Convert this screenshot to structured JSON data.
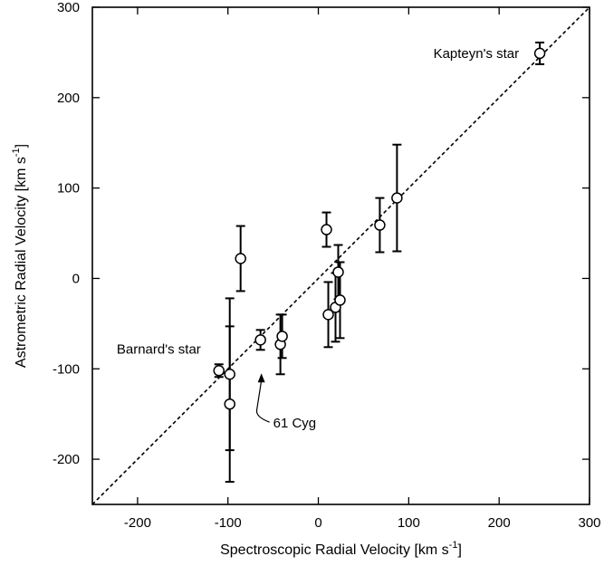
{
  "chart_data": {
    "type": "scatter",
    "title": "",
    "xlabel": "Spectroscopic Radial Velocity  [km s",
    "xlabel_exp": "-1",
    "xlabel_close": "]",
    "ylabel": "Astrometric Radial Velocity  [km s",
    "ylabel_exp": "-1",
    "ylabel_close": "]",
    "xlim": [
      -250,
      300
    ],
    "ylim": [
      -250,
      300
    ],
    "xticks": [
      -200,
      -100,
      0,
      100,
      200,
      300
    ],
    "yticks": [
      -200,
      -100,
      0,
      100,
      200,
      300
    ],
    "grid": false,
    "legend": "none",
    "reference_line": {
      "style": "dashed",
      "from": [
        -250,
        -250
      ],
      "to": [
        300,
        300
      ]
    },
    "points": [
      {
        "x": -110,
        "y": -102,
        "err_low": 7,
        "err_high": 7
      },
      {
        "x": -98,
        "y": -106,
        "err_low": 84,
        "err_high": 84
      },
      {
        "x": -98,
        "y": -139,
        "err_low": 86,
        "err_high": 86
      },
      {
        "x": -86,
        "y": 22,
        "err_low": 36,
        "err_high": 36
      },
      {
        "x": -64,
        "y": -68,
        "err_low": 11,
        "err_high": 11
      },
      {
        "x": -42,
        "y": -73,
        "err_low": 33,
        "err_high": 33
      },
      {
        "x": -40,
        "y": -64,
        "err_low": 24,
        "err_high": 24
      },
      {
        "x": 9,
        "y": 54,
        "err_low": 19,
        "err_high": 19
      },
      {
        "x": 11,
        "y": -40,
        "err_low": 36,
        "err_high": 36
      },
      {
        "x": 19,
        "y": -32,
        "err_low": 38,
        "err_high": 38
      },
      {
        "x": 22,
        "y": 7,
        "err_low": 30,
        "err_high": 30
      },
      {
        "x": 24,
        "y": -24,
        "err_low": 42,
        "err_high": 42
      },
      {
        "x": 68,
        "y": 59,
        "err_low": 30,
        "err_high": 30
      },
      {
        "x": 87,
        "y": 89,
        "err_low": 59,
        "err_high": 59
      },
      {
        "x": 245,
        "y": 249,
        "err_low": 12,
        "err_high": 12
      }
    ],
    "annotations": [
      {
        "text": "Kapteyn's star",
        "x": 222,
        "y": 249,
        "anchor": "end"
      },
      {
        "text": "Barnard's star",
        "x": -130,
        "y": -78,
        "anchor": "end"
      },
      {
        "text": "61 Cyg",
        "x": -50,
        "y": -160,
        "anchor": "start",
        "arrow_to": [
          -63,
          -105
        ],
        "arrow_from": [
          -68,
          -145
        ]
      }
    ]
  }
}
